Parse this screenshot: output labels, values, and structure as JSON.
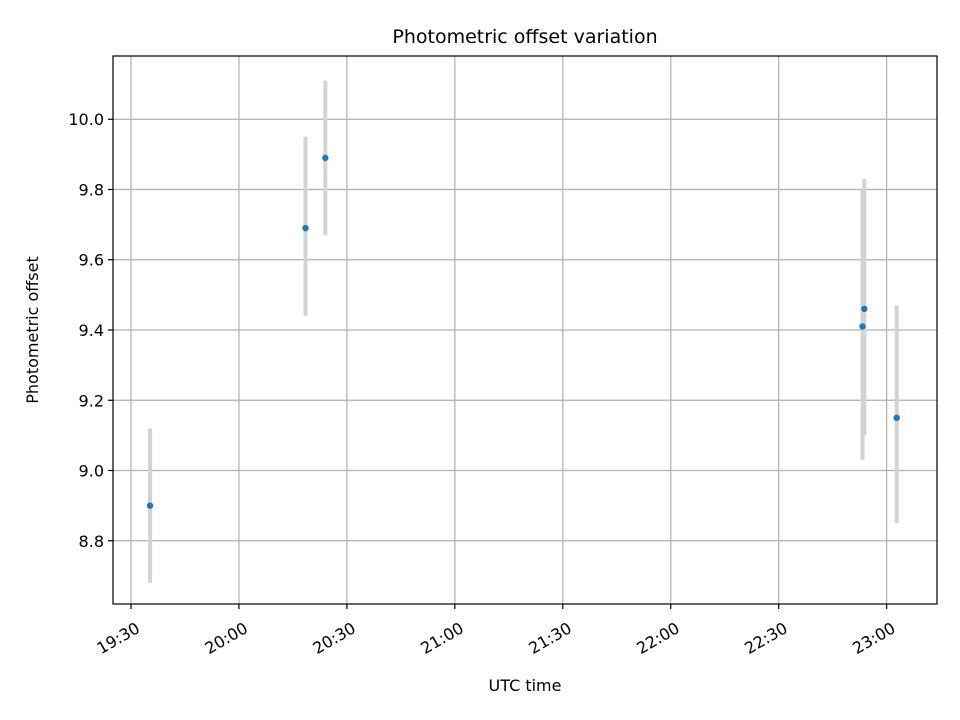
{
  "chart_data": {
    "type": "scatter",
    "title": "Photometric offset variation",
    "xlabel": "UTC time",
    "ylabel": "Photometric offset",
    "x_ticks": [
      "19:30",
      "20:00",
      "20:30",
      "21:00",
      "21:30",
      "22:00",
      "22:30",
      "23:00"
    ],
    "x_tick_minutes": [
      1170,
      1200,
      1230,
      1260,
      1290,
      1320,
      1350,
      1380
    ],
    "xlim_minutes": [
      1165,
      1394
    ],
    "y_ticks": [
      "8.8",
      "9.0",
      "9.2",
      "9.4",
      "9.6",
      "9.8",
      "10.0"
    ],
    "y_tick_values": [
      8.8,
      9.0,
      9.2,
      9.4,
      9.6,
      9.8,
      10.0
    ],
    "ylim": [
      8.62,
      10.18
    ],
    "grid": true,
    "point_color": "#1f77b4",
    "errorbar_color": "#d3d3d3",
    "points": [
      {
        "x": "19:35",
        "x_minutes": 1175.3,
        "y": 8.9,
        "y_low": 8.68,
        "y_high": 9.12
      },
      {
        "x": "20:18",
        "x_minutes": 1218.5,
        "y": 9.69,
        "y_low": 9.44,
        "y_high": 9.95
      },
      {
        "x": "20:24",
        "x_minutes": 1224.0,
        "y": 9.89,
        "y_low": 9.67,
        "y_high": 10.11
      },
      {
        "x": "22:53",
        "x_minutes": 1373.3,
        "y": 9.41,
        "y_low": 9.03,
        "y_high": 9.8
      },
      {
        "x": "22:53",
        "x_minutes": 1373.8,
        "y": 9.46,
        "y_low": 9.1,
        "y_high": 9.83
      },
      {
        "x": "23:03",
        "x_minutes": 1382.8,
        "y": 9.15,
        "y_low": 8.85,
        "y_high": 9.47
      }
    ]
  }
}
